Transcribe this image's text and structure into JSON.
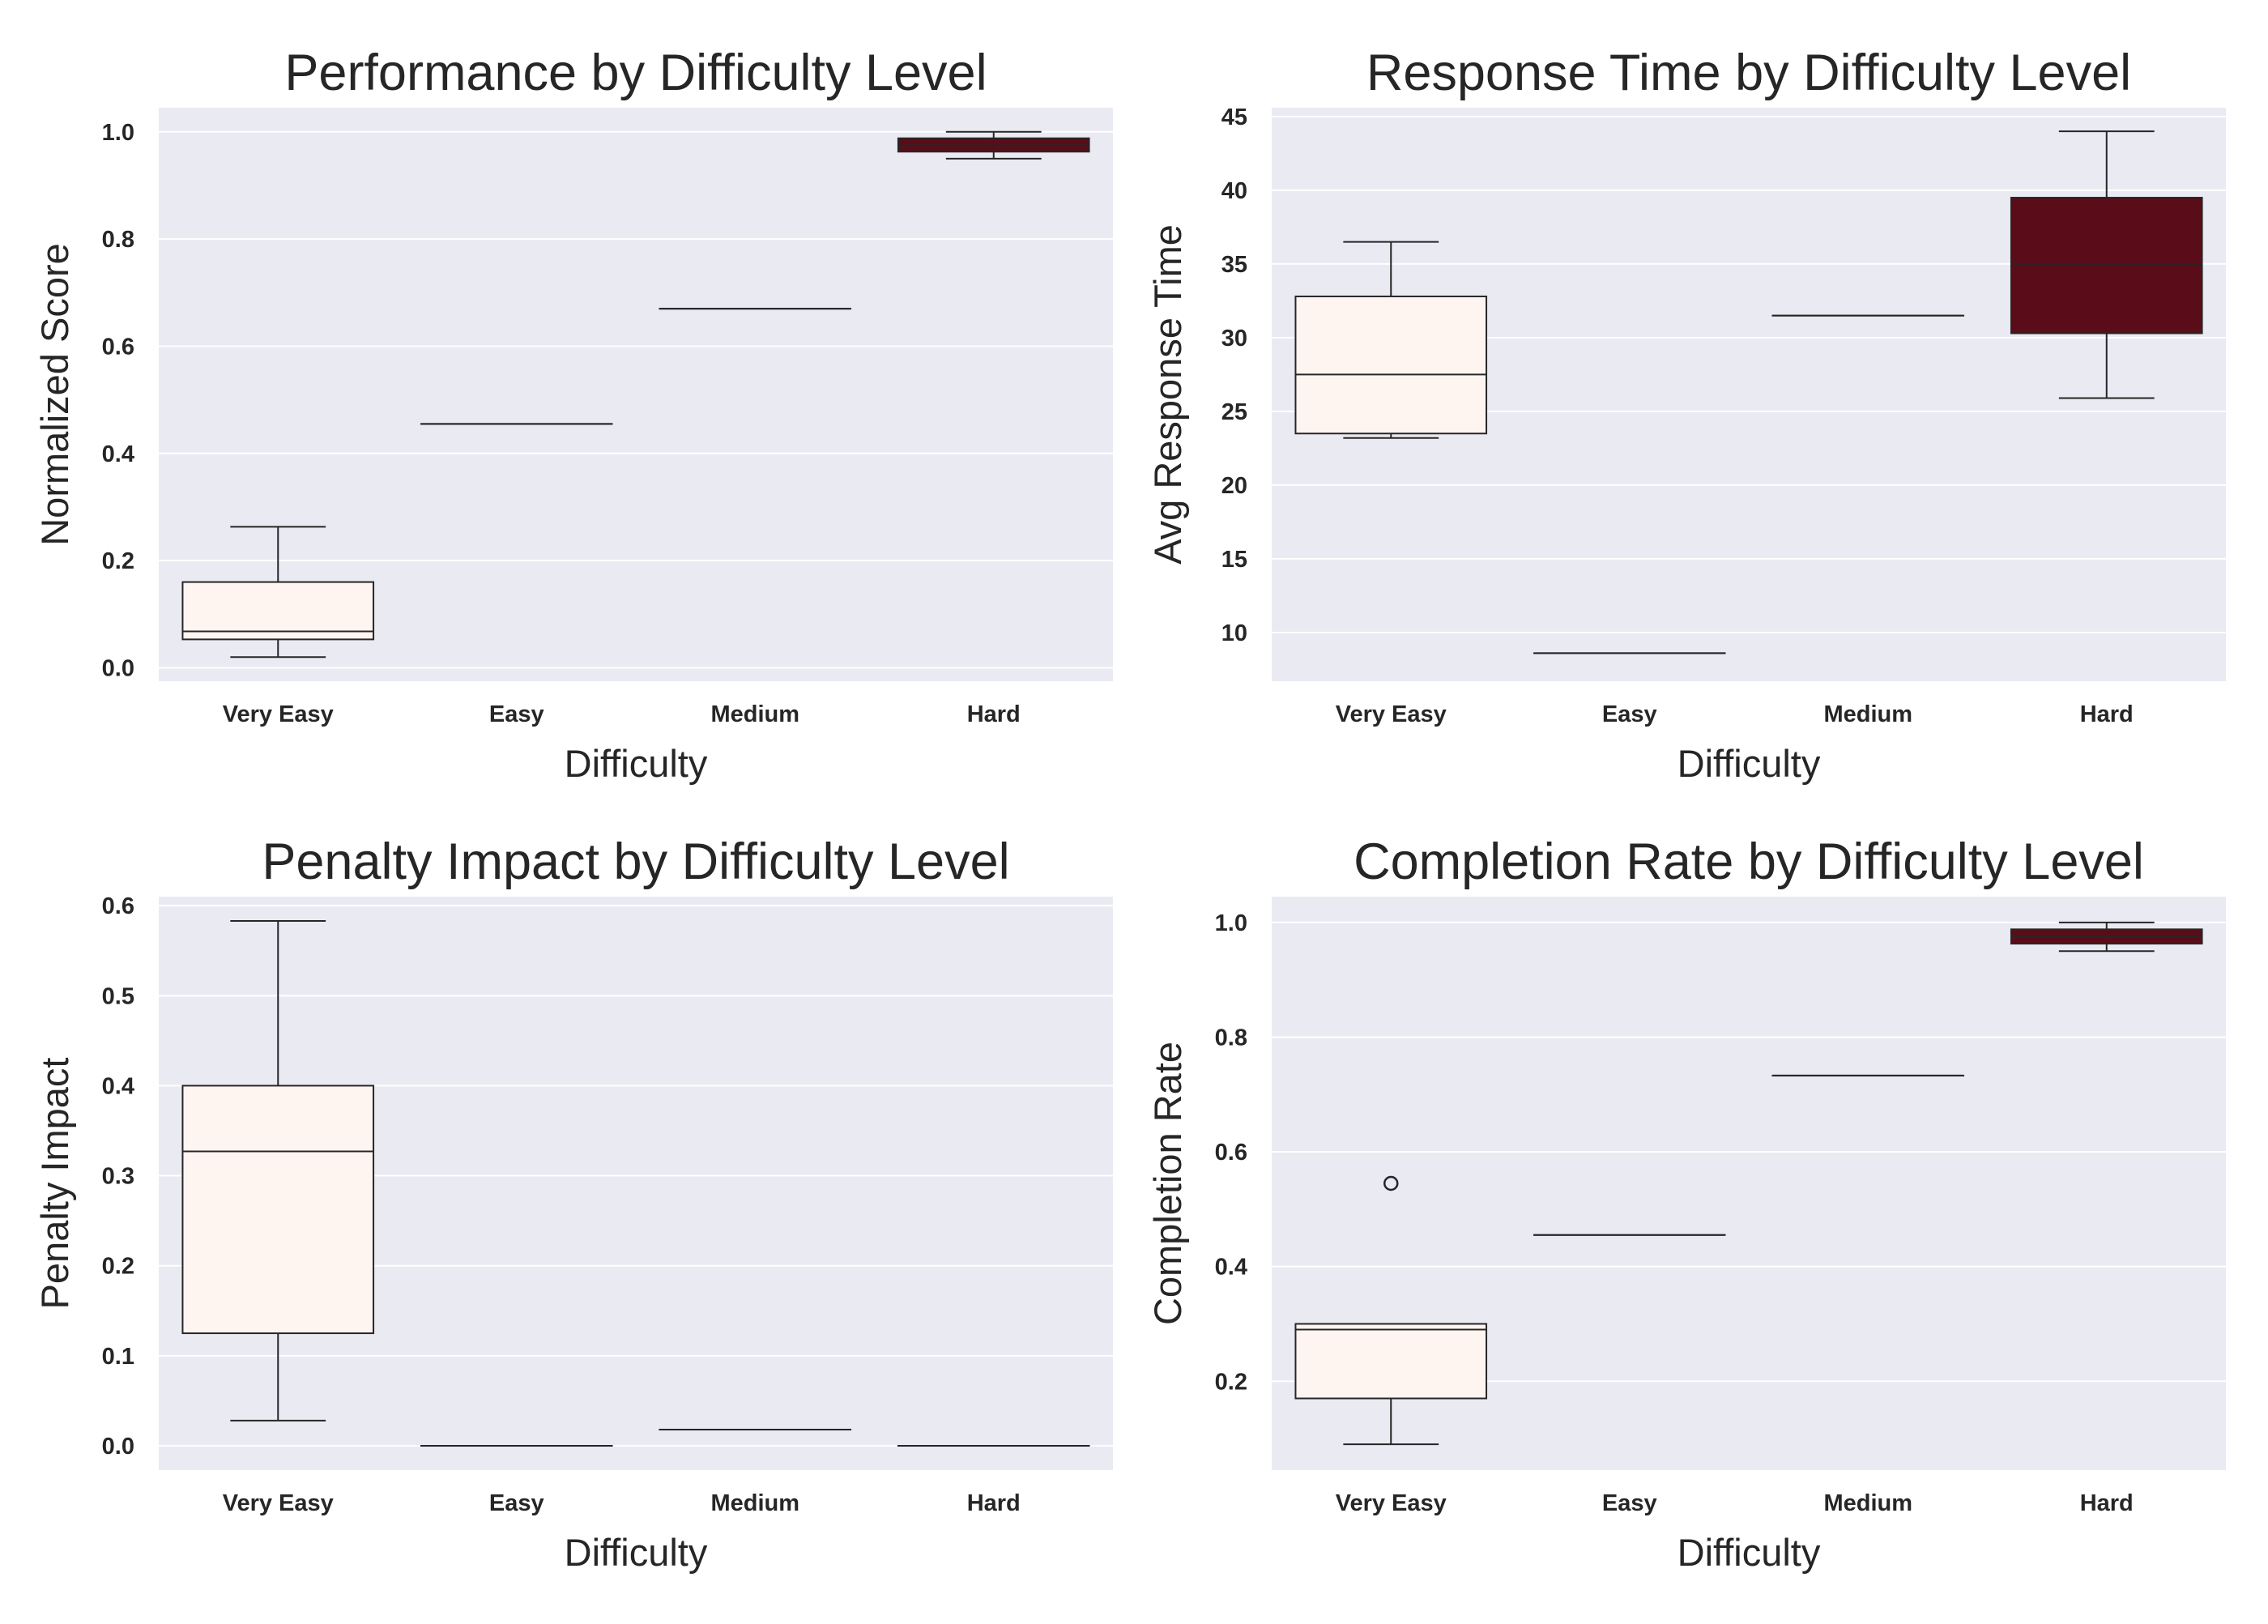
{
  "colors": {
    "panel_bg": "#eaeaf2",
    "grid": "#ffffff",
    "box_light": "#fff5f0",
    "box_dark": "#5a0d18",
    "stroke": "#262626"
  },
  "chart_data": [
    {
      "type": "box",
      "title": "Performance by Difficulty Level",
      "xlabel": "Difficulty",
      "ylabel": "Normalized Score",
      "categories": [
        "Very Easy",
        "Easy",
        "Medium",
        "Hard"
      ],
      "ylim": [
        -0.025,
        1.045
      ],
      "yticks": [
        0.0,
        0.2,
        0.4,
        0.6,
        0.8,
        1.0
      ],
      "ytick_labels": [
        "0.0",
        "0.2",
        "0.4",
        "0.6",
        "0.8",
        "1.0"
      ],
      "boxes": [
        {
          "category": "Very Easy",
          "whislo": 0.02,
          "q1": 0.053,
          "med": 0.068,
          "q3": 0.16,
          "whishi": 0.263,
          "fliers": [],
          "shade": "light"
        },
        {
          "category": "Easy",
          "whislo": 0.455,
          "q1": 0.455,
          "med": 0.455,
          "q3": 0.455,
          "whishi": 0.455,
          "fliers": [],
          "shade": "light"
        },
        {
          "category": "Medium",
          "whislo": 0.67,
          "q1": 0.67,
          "med": 0.67,
          "q3": 0.67,
          "whishi": 0.67,
          "fliers": [],
          "shade": "light"
        },
        {
          "category": "Hard",
          "whislo": 0.95,
          "q1": 0.963,
          "med": 0.975,
          "q3": 0.988,
          "whishi": 1.0,
          "fliers": [],
          "shade": "dark"
        }
      ]
    },
    {
      "type": "box",
      "title": "Response Time by Difficulty Level",
      "xlabel": "Difficulty",
      "ylabel": "Avg Response Time",
      "categories": [
        "Very Easy",
        "Easy",
        "Medium",
        "Hard"
      ],
      "ylim": [
        6.7,
        45.6
      ],
      "yticks": [
        10,
        15,
        20,
        25,
        30,
        35,
        40,
        45
      ],
      "ytick_labels": [
        "10",
        "15",
        "20",
        "25",
        "30",
        "35",
        "40",
        "45"
      ],
      "boxes": [
        {
          "category": "Very Easy",
          "whislo": 23.2,
          "q1": 23.5,
          "med": 27.5,
          "q3": 32.8,
          "whishi": 36.5,
          "fliers": [],
          "shade": "light"
        },
        {
          "category": "Easy",
          "whislo": 8.6,
          "q1": 8.6,
          "med": 8.6,
          "q3": 8.6,
          "whishi": 8.6,
          "fliers": [],
          "shade": "light"
        },
        {
          "category": "Medium",
          "whislo": 31.5,
          "q1": 31.5,
          "med": 31.5,
          "q3": 31.5,
          "whishi": 31.5,
          "fliers": [],
          "shade": "light"
        },
        {
          "category": "Hard",
          "whislo": 25.9,
          "q1": 30.3,
          "med": 35.0,
          "q3": 39.5,
          "whishi": 44.0,
          "fliers": [],
          "shade": "dark"
        }
      ]
    },
    {
      "type": "box",
      "title": "Penalty Impact by Difficulty Level",
      "xlabel": "Difficulty",
      "ylabel": "Penalty Impact",
      "categories": [
        "Very Easy",
        "Easy",
        "Medium",
        "Hard"
      ],
      "ylim": [
        -0.027,
        0.61
      ],
      "yticks": [
        0.0,
        0.1,
        0.2,
        0.3,
        0.4,
        0.5,
        0.6
      ],
      "ytick_labels": [
        "0.0",
        "0.1",
        "0.2",
        "0.3",
        "0.4",
        "0.5",
        "0.6"
      ],
      "boxes": [
        {
          "category": "Very Easy",
          "whislo": 0.028,
          "q1": 0.125,
          "med": 0.327,
          "q3": 0.4,
          "whishi": 0.583,
          "fliers": [],
          "shade": "light"
        },
        {
          "category": "Easy",
          "whislo": 0.0,
          "q1": 0.0,
          "med": 0.0,
          "q3": 0.0,
          "whishi": 0.0,
          "fliers": [],
          "shade": "light"
        },
        {
          "category": "Medium",
          "whislo": 0.018,
          "q1": 0.018,
          "med": 0.018,
          "q3": 0.018,
          "whishi": 0.018,
          "fliers": [],
          "shade": "light"
        },
        {
          "category": "Hard",
          "whislo": 0.0,
          "q1": 0.0,
          "med": 0.0,
          "q3": 0.0,
          "whishi": 0.0,
          "fliers": [],
          "shade": "light"
        }
      ]
    },
    {
      "type": "box",
      "title": "Completion Rate by Difficulty Level",
      "xlabel": "Difficulty",
      "ylabel": "Completion Rate",
      "categories": [
        "Very Easy",
        "Easy",
        "Medium",
        "Hard"
      ],
      "ylim": [
        0.045,
        1.045
      ],
      "yticks": [
        0.2,
        0.4,
        0.6,
        0.8,
        1.0
      ],
      "ytick_labels": [
        "0.2",
        "0.4",
        "0.6",
        "0.8",
        "1.0"
      ],
      "boxes": [
        {
          "category": "Very Easy",
          "whislo": 0.09,
          "q1": 0.17,
          "med": 0.29,
          "q3": 0.3,
          "whishi": 0.3,
          "fliers": [
            0.545
          ],
          "shade": "light"
        },
        {
          "category": "Easy",
          "whislo": 0.455,
          "q1": 0.455,
          "med": 0.455,
          "q3": 0.455,
          "whishi": 0.455,
          "fliers": [],
          "shade": "light"
        },
        {
          "category": "Medium",
          "whislo": 0.733,
          "q1": 0.733,
          "med": 0.733,
          "q3": 0.733,
          "whishi": 0.733,
          "fliers": [],
          "shade": "light"
        },
        {
          "category": "Hard",
          "whislo": 0.95,
          "q1": 0.963,
          "med": 0.975,
          "q3": 0.988,
          "whishi": 1.0,
          "fliers": [],
          "shade": "dark"
        }
      ]
    }
  ]
}
